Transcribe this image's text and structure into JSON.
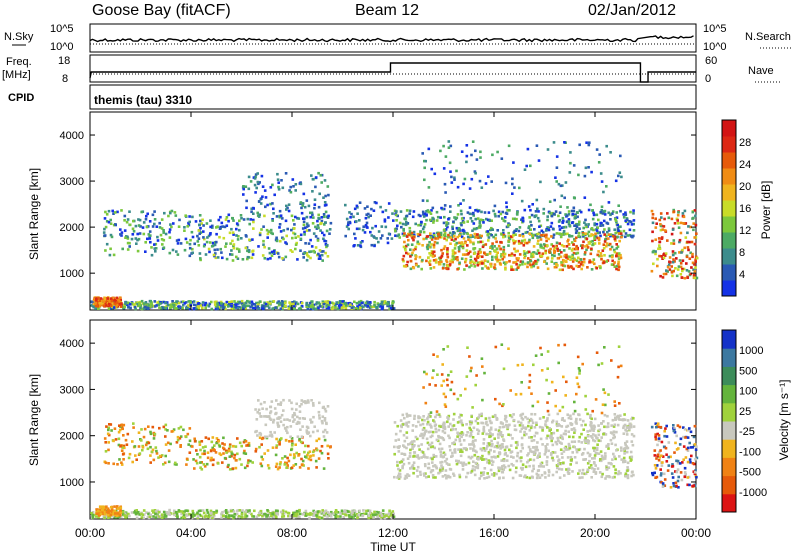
{
  "header": {
    "station": "Goose Bay (fitACF)",
    "beam": "Beam 12",
    "date": "02/Jan/2012"
  },
  "noise_panel": {
    "left_label": "N.Sky",
    "right_label": "N.Search",
    "left_ticks": [
      "10^5",
      "10^0"
    ],
    "right_ticks": [
      "10^5",
      "10^0"
    ]
  },
  "freq_panel": {
    "left_label_1": "Freq.",
    "left_label_2": "[MHz]",
    "left_ticks": [
      "18",
      "8"
    ],
    "right_label": "Nave",
    "right_ticks": [
      "60",
      "0"
    ]
  },
  "cpid_panel": {
    "label": "CPID",
    "text": "themis (tau) 3310"
  },
  "colors": {
    "power": [
      "#1432e6",
      "#2a5ab4",
      "#3c8c8c",
      "#4caa64",
      "#7cc83c",
      "#c8dc28",
      "#f0b41e",
      "#f08c14",
      "#e65a0a",
      "#dc2814",
      "#d21414"
    ],
    "velocity": [
      "#1432c8",
      "#3c78a0",
      "#3c8c5a",
      "#64b43c",
      "#a0d23c",
      "#c8c8be",
      "#f0b41e",
      "#f08214",
      "#e65a0a",
      "#dc1414"
    ]
  },
  "chart_data": [
    {
      "type": "heatmap",
      "name": "power",
      "ylabel": "Slant Range [km]",
      "yticks": [
        "1000",
        "2000",
        "3000",
        "4000"
      ],
      "colorbar_label": "Power [dB]",
      "colorbar_ticks": [
        "4",
        "8",
        "12",
        "16",
        "20",
        "24",
        "28"
      ],
      "xrange": [
        0,
        24
      ],
      "yrange": [
        200,
        4500
      ],
      "crange": [
        0,
        30
      ]
    },
    {
      "type": "heatmap",
      "name": "velocity",
      "ylabel": "Slant Range [km]",
      "yticks": [
        "1000",
        "2000",
        "3000",
        "4000"
      ],
      "colorbar_label": "Velocity [m s⁻¹]",
      "colorbar_ticks": [
        "1000",
        "500",
        "100",
        "25",
        "-25",
        "-100",
        "-500",
        "-1000"
      ],
      "xlabel": "Time UT",
      "xticks": [
        "00:00",
        "04:00",
        "08:00",
        "12:00",
        "16:00",
        "20:00",
        "00:00"
      ],
      "xrange": [
        0,
        24
      ],
      "yrange": [
        200,
        4500
      ]
    }
  ]
}
